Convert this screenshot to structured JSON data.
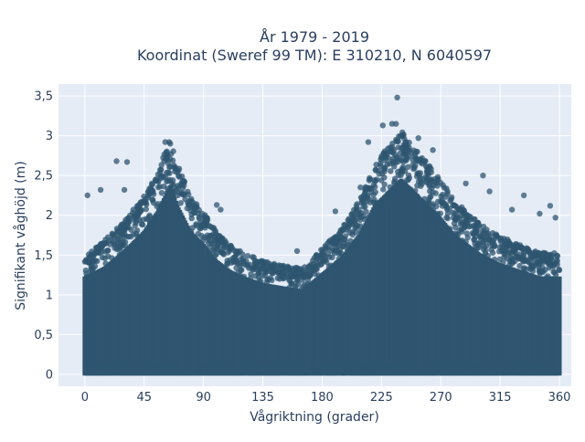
{
  "chart_data": {
    "type": "scatter",
    "title_lines": [
      "År 1979 - 2019",
      "Koordinat (Sweref 99 TM): E 310210, N 6040597"
    ],
    "xlabel": "Vågriktning (grader)",
    "ylabel": "Signifikant våghöjd (m)",
    "xlim": [
      -20,
      369
    ],
    "ylim": [
      -0.15,
      3.65
    ],
    "xticks": [
      0,
      45,
      90,
      135,
      180,
      225,
      270,
      315,
      360
    ],
    "xtick_labels": [
      "0",
      "45",
      "90",
      "135",
      "180",
      "225",
      "270",
      "315",
      "360"
    ],
    "yticks": [
      0,
      0.5,
      1,
      1.5,
      2,
      2.5,
      3,
      3.5
    ],
    "ytick_labels": [
      "0",
      "0,5",
      "1",
      "1,5",
      "2",
      "2,5",
      "3",
      "3,5"
    ],
    "grid": true,
    "legend": "none",
    "marker_color": "#2f5570",
    "plot_background": "#e5ecf6",
    "envelope": {
      "direction": [
        0,
        15,
        30,
        45,
        55,
        60,
        65,
        70,
        80,
        90,
        100,
        110,
        120,
        135,
        150,
        165,
        180,
        195,
        210,
        220,
        230,
        240,
        250,
        260,
        270,
        280,
        290,
        300,
        315,
        330,
        345,
        360
      ],
      "max_height": [
        1.5,
        1.65,
        1.9,
        2.2,
        2.5,
        2.7,
        2.9,
        2.6,
        2.2,
        2.0,
        1.75,
        1.6,
        1.5,
        1.4,
        1.35,
        1.3,
        1.55,
        1.8,
        2.2,
        2.6,
        2.8,
        3.0,
        2.8,
        2.6,
        2.4,
        2.15,
        2.0,
        1.85,
        1.7,
        1.6,
        1.5,
        1.5
      ]
    },
    "outliers": [
      {
        "x": 2,
        "y": 2.25
      },
      {
        "x": 12,
        "y": 2.32
      },
      {
        "x": 24,
        "y": 2.68
      },
      {
        "x": 32,
        "y": 2.67
      },
      {
        "x": 30,
        "y": 2.32
      },
      {
        "x": 61,
        "y": 2.92
      },
      {
        "x": 64,
        "y": 2.92
      },
      {
        "x": 100,
        "y": 2.13
      },
      {
        "x": 103,
        "y": 2.07
      },
      {
        "x": 237,
        "y": 3.48
      },
      {
        "x": 226,
        "y": 3.13
      },
      {
        "x": 233,
        "y": 3.15
      },
      {
        "x": 236,
        "y": 3.15
      },
      {
        "x": 253,
        "y": 2.97
      },
      {
        "x": 264,
        "y": 2.82
      },
      {
        "x": 302,
        "y": 2.5
      },
      {
        "x": 324,
        "y": 2.07
      },
      {
        "x": 333,
        "y": 2.25
      },
      {
        "x": 353,
        "y": 2.12
      },
      {
        "x": 357,
        "y": 1.97
      },
      {
        "x": 345,
        "y": 2.02
      },
      {
        "x": 307,
        "y": 2.3
      },
      {
        "x": 289,
        "y": 2.4
      },
      {
        "x": 215,
        "y": 2.92
      },
      {
        "x": 209,
        "y": 2.35
      },
      {
        "x": 190,
        "y": 2.05
      },
      {
        "x": 161,
        "y": 1.55
      }
    ]
  }
}
